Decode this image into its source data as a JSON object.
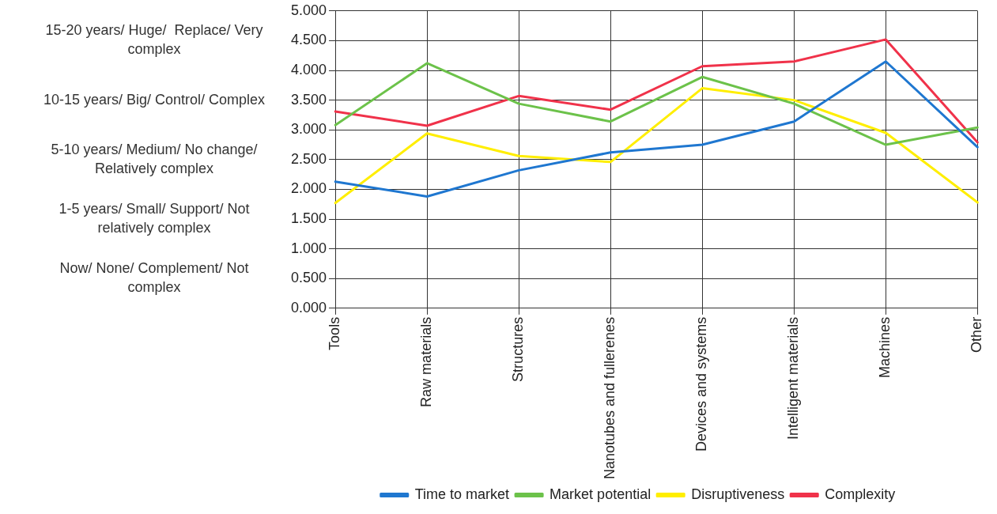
{
  "chart_data": {
    "type": "line",
    "categories": [
      "Tools",
      "Raw materials",
      "Structures",
      "Nanotubes and fullerenes",
      "Devices and systems",
      "Intelligent materials",
      "Machines",
      "Other"
    ],
    "series": [
      {
        "name": "Time to market",
        "color": "#1f77d0",
        "values": [
          2.13,
          1.88,
          2.32,
          2.62,
          2.75,
          3.14,
          4.15,
          2.71
        ]
      },
      {
        "name": "Market potential",
        "color": "#6cc24a",
        "values": [
          3.08,
          4.12,
          3.44,
          3.14,
          3.89,
          3.44,
          2.75,
          3.04
        ]
      },
      {
        "name": "Disruptiveness",
        "color": "#ffee00",
        "values": [
          1.77,
          2.94,
          2.56,
          2.46,
          3.7,
          3.5,
          2.95,
          1.78
        ]
      },
      {
        "name": "Complexity",
        "color": "#f0324a",
        "values": [
          3.31,
          3.07,
          3.57,
          3.34,
          4.07,
          4.15,
          4.52,
          2.79
        ]
      }
    ],
    "ylim": [
      0,
      5
    ],
    "yticks": [
      {
        "value": 0,
        "label": "0.000"
      },
      {
        "value": 0.5,
        "label": "0.500"
      },
      {
        "value": 1,
        "label": "1.000"
      },
      {
        "value": 1.5,
        "label": "1.500"
      },
      {
        "value": 2,
        "label": "2.000"
      },
      {
        "value": 2.5,
        "label": "2.500"
      },
      {
        "value": 3,
        "label": "3.000"
      },
      {
        "value": 3.5,
        "label": "3.500"
      },
      {
        "value": 4,
        "label": "4.000"
      },
      {
        "value": 4.5,
        "label": "4.500"
      },
      {
        "value": 5,
        "label": "5.000"
      }
    ],
    "annotations": [
      "15-20 years/ Huge/  Replace/ Very complex",
      "10-15 years/ Big/ Control/ Complex",
      "5-10 years/ Medium/ No change/ Relatively complex",
      "1-5 years/ Small/ Support/ Not relatively complex",
      "Now/ None/ Complement/ Not complex"
    ],
    "grid": true,
    "legend": "bottom",
    "marker": "none",
    "line_style": "solid"
  }
}
